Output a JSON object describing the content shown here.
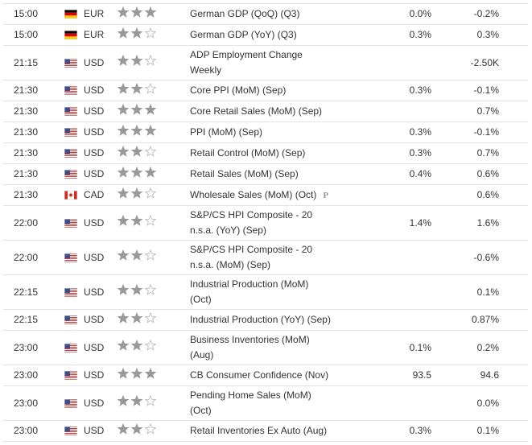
{
  "rows": [
    {
      "time": "15:00",
      "flag": "de",
      "currency": "EUR",
      "importance": 3,
      "event": [
        "German GDP (QoQ) (Q3)"
      ],
      "forecast": "0.0%",
      "previous": "-0.2%"
    },
    {
      "time": "15:00",
      "flag": "de",
      "currency": "EUR",
      "importance": 2,
      "event": [
        "German GDP (YoY) (Q3)"
      ],
      "forecast": "0.3%",
      "previous": "0.3%"
    },
    {
      "time": "21:15",
      "flag": "us",
      "currency": "USD",
      "importance": 2,
      "event": [
        "ADP Employment Change",
        "Weekly"
      ],
      "forecast": null,
      "previous": "-2.50K"
    },
    {
      "time": "21:30",
      "flag": "us",
      "currency": "USD",
      "importance": 2,
      "event": [
        "Core PPI (MoM) (Sep)"
      ],
      "forecast": "0.3%",
      "previous": "-0.1%"
    },
    {
      "time": "21:30",
      "flag": "us",
      "currency": "USD",
      "importance": 3,
      "event": [
        "Core Retail Sales (MoM) (Sep)"
      ],
      "forecast": null,
      "previous": "0.7%"
    },
    {
      "time": "21:30",
      "flag": "us",
      "currency": "USD",
      "importance": 3,
      "event": [
        "PPI (MoM) (Sep)"
      ],
      "forecast": "0.3%",
      "previous": "-0.1%"
    },
    {
      "time": "21:30",
      "flag": "us",
      "currency": "USD",
      "importance": 2,
      "event": [
        "Retail Control (MoM) (Sep)"
      ],
      "forecast": "0.3%",
      "previous": "0.7%"
    },
    {
      "time": "21:30",
      "flag": "us",
      "currency": "USD",
      "importance": 3,
      "event": [
        "Retail Sales (MoM) (Sep)"
      ],
      "forecast": "0.4%",
      "previous": "0.6%"
    },
    {
      "time": "21:30",
      "flag": "ca",
      "currency": "CAD",
      "importance": 2,
      "event": [
        "Wholesale Sales (MoM) (Oct)"
      ],
      "note": "P",
      "forecast": null,
      "previous": "0.6%"
    },
    {
      "time": "22:00",
      "flag": "us",
      "currency": "USD",
      "importance": 2,
      "event": [
        "S&P/CS HPI Composite - 20",
        "n.s.a. (YoY) (Sep)"
      ],
      "forecast": "1.4%",
      "previous": "1.6%"
    },
    {
      "time": "22:00",
      "flag": "us",
      "currency": "USD",
      "importance": 2,
      "event": [
        "S&P/CS HPI Composite - 20",
        "n.s.a. (MoM) (Sep)"
      ],
      "forecast": null,
      "previous": "-0.6%"
    },
    {
      "time": "22:15",
      "flag": "us",
      "currency": "USD",
      "importance": 2,
      "event": [
        "Industrial Production (MoM)",
        "(Oct)"
      ],
      "forecast": null,
      "previous": "0.1%"
    },
    {
      "time": "22:15",
      "flag": "us",
      "currency": "USD",
      "importance": 2,
      "event": [
        "Industrial Production (YoY) (Sep)"
      ],
      "forecast": null,
      "previous": "0.87%"
    },
    {
      "time": "23:00",
      "flag": "us",
      "currency": "USD",
      "importance": 2,
      "event": [
        "Business Inventories (MoM)",
        "(Aug)"
      ],
      "forecast": "0.1%",
      "previous": "0.2%"
    },
    {
      "time": "23:00",
      "flag": "us",
      "currency": "USD",
      "importance": 3,
      "event": [
        "CB Consumer Confidence (Nov)"
      ],
      "forecast": "93.5",
      "previous": "94.6"
    },
    {
      "time": "23:00",
      "flag": "us",
      "currency": "USD",
      "importance": 2,
      "event": [
        "Pending Home Sales (MoM)",
        "(Oct)"
      ],
      "forecast": null,
      "previous": "0.0%"
    },
    {
      "time": "23:00",
      "flag": "us",
      "currency": "USD",
      "importance": 2,
      "event": [
        "Retail Inventories Ex Auto (Aug)"
      ],
      "forecast": "0.3%",
      "previous": "0.1%"
    }
  ]
}
